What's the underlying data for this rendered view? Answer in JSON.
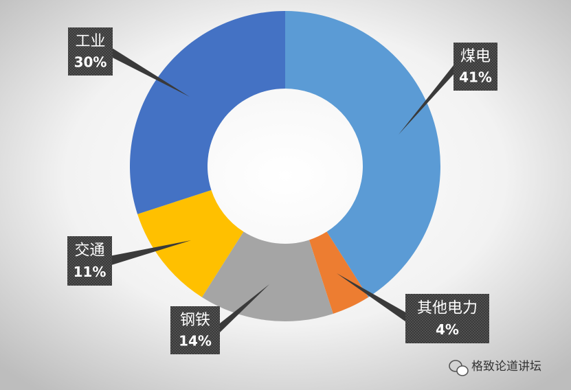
{
  "chart_data": {
    "type": "donut",
    "categories": [
      "煤电",
      "其他电力",
      "钢铁",
      "交通",
      "工业"
    ],
    "values": [
      41,
      4,
      14,
      11,
      30
    ],
    "value_labels": [
      "41%",
      "4%",
      "14%",
      "11%",
      "30%"
    ],
    "colors": [
      "#5b9bd5",
      "#ed7d31",
      "#a5a5a5",
      "#ffc000",
      "#4472c4"
    ],
    "watermark": "格致论道讲坛"
  }
}
